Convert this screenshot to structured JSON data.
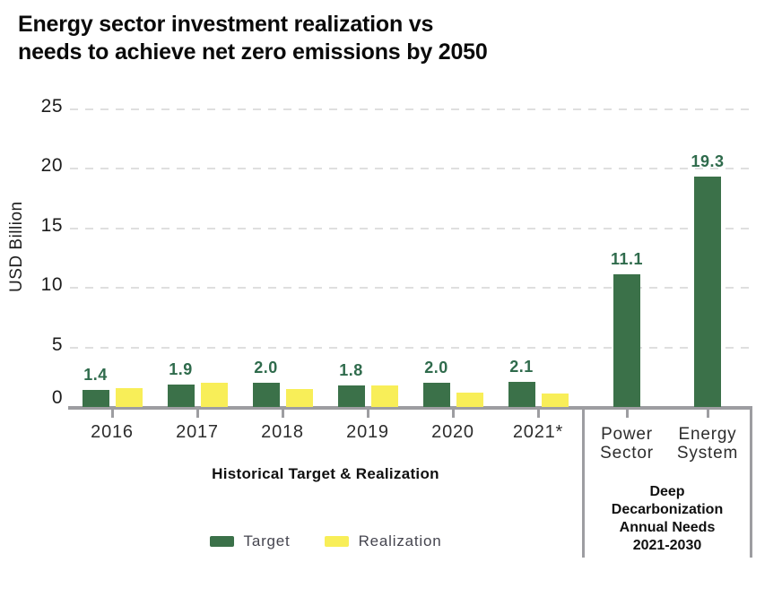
{
  "title": {
    "lines": [
      "Energy sector investment realization vs",
      "needs to achieve net zero emissions by 2050"
    ]
  },
  "y_axis": {
    "label": "USD Billion"
  },
  "chart_data": {
    "type": "bar",
    "title": "Energy sector investment realization vs needs to achieve net zero emissions by 2050",
    "ylabel": "USD Billion",
    "ylim": [
      0,
      25
    ],
    "yticks": [
      0,
      5,
      10,
      15,
      20,
      25
    ],
    "grid": "horizontal-dashed",
    "legend_position": "bottom",
    "categories": [
      "2016",
      "2017",
      "2018",
      "2019",
      "2020",
      "2021*",
      "Power Sector",
      "Energy System"
    ],
    "series": [
      {
        "name": "Target",
        "color": "#3B7149",
        "values": [
          1.4,
          1.9,
          2.0,
          1.8,
          2.0,
          2.1,
          11.1,
          19.3
        ],
        "labels": [
          "1.4",
          "1.9",
          "2.0",
          "1.8",
          "2.0",
          "2.1",
          "11.1",
          "19.3"
        ]
      },
      {
        "name": "Realization",
        "color": "#F8EE58",
        "values": [
          1.6,
          2.0,
          1.5,
          1.8,
          1.2,
          1.1,
          null,
          null
        ],
        "labels": [
          "",
          "",
          "",
          "",
          "",
          "",
          "",
          ""
        ]
      }
    ]
  },
  "sections": {
    "historical": {
      "label": "Historical Target & Realization"
    },
    "deep": {
      "lines": [
        "Deep",
        "Decarbonization",
        "Annual Needs",
        "2021-2030"
      ]
    }
  },
  "legend": {
    "items": [
      {
        "label": "Target",
        "color": "#3B7149"
      },
      {
        "label": "Realization",
        "color": "#F8EE58"
      }
    ]
  },
  "colors": {
    "target": "#3B7149",
    "realization": "#F8EE58",
    "value_label": "#2F6B4C",
    "axis": "#9D9DA1",
    "gridline": "#DFDFDF"
  }
}
